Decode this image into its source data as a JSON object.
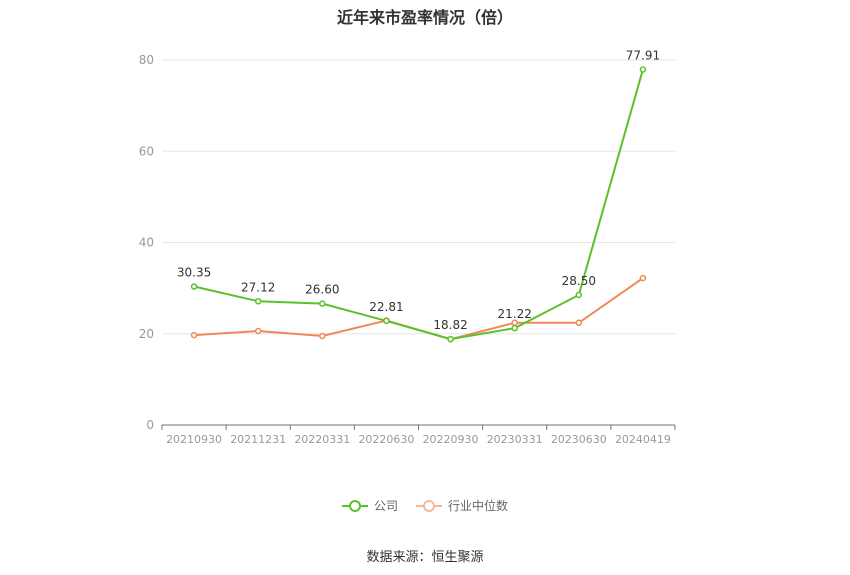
{
  "chart_data": {
    "type": "line",
    "title": "近年来市盈率情况（倍）",
    "categories": [
      "20210930",
      "20211231",
      "20220331",
      "20220630",
      "20220930",
      "20230331",
      "20230630",
      "20240419"
    ],
    "ylim": [
      0,
      80
    ],
    "yticks": [
      0,
      20,
      40,
      60,
      80
    ],
    "grid": true,
    "legend_position": "bottom",
    "series": [
      {
        "name": "公司",
        "color": "#5ac229",
        "values": [
          30.35,
          27.12,
          26.6,
          22.81,
          18.82,
          21.22,
          28.5,
          77.91
        ],
        "labels": [
          "30.35",
          "27.12",
          "26.60",
          "22.81",
          "18.82",
          "21.22",
          "28.50",
          "77.91"
        ]
      },
      {
        "name": "行业中位数",
        "color": "#f0875a",
        "values": [
          19.7,
          20.6,
          19.5,
          22.9,
          18.8,
          22.4,
          22.4,
          32.2
        ]
      }
    ]
  },
  "source": "数据来源：恒生聚源"
}
